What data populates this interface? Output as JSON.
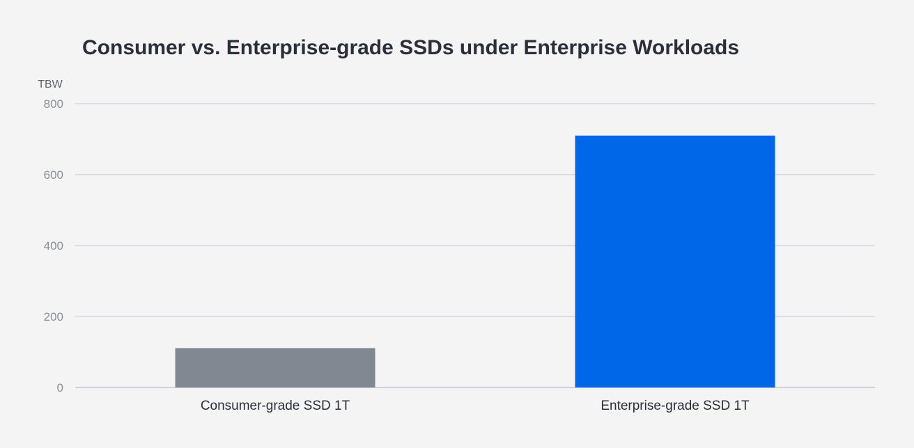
{
  "chart_data": {
    "type": "bar",
    "title": "Consumer vs. Enterprise-grade SSDs under Enterprise Workloads",
    "ylabel": "TBW",
    "xlabel": "",
    "categories": [
      "Consumer-grade SSD 1T",
      "Enterprise-grade SSD 1T"
    ],
    "values": [
      111,
      710
    ],
    "colors": [
      "#818892",
      "#0068e8"
    ],
    "ylim": [
      0,
      800
    ],
    "yticks": [
      0,
      200,
      400,
      600,
      800
    ],
    "grid": true,
    "legend": "none"
  }
}
